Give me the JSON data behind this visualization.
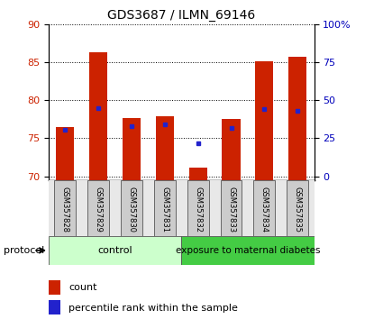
{
  "title": "GDS3687 / ILMN_69146",
  "samples": [
    "GSM357828",
    "GSM357829",
    "GSM357830",
    "GSM357831",
    "GSM357832",
    "GSM357833",
    "GSM357834",
    "GSM357835"
  ],
  "count_values": [
    76.5,
    86.3,
    77.6,
    77.9,
    71.2,
    77.5,
    85.1,
    85.7
  ],
  "percentile_values": [
    76.1,
    79.0,
    76.6,
    76.8,
    74.3,
    76.3,
    78.8,
    78.6
  ],
  "ylim_left": [
    69.5,
    90
  ],
  "yticks_left": [
    70,
    75,
    80,
    85,
    90
  ],
  "ytick_labels_right": [
    "0",
    "25",
    "50",
    "75",
    "100%"
  ],
  "right_ticks_positions": [
    70,
    75,
    80,
    85,
    90
  ],
  "bar_color": "#cc2200",
  "percentile_color": "#2222cc",
  "bar_width": 0.55,
  "control_label": "control",
  "exposure_label": "exposure to maternal diabetes",
  "control_color": "#ccffcc",
  "exposure_color": "#44cc44",
  "protocol_label": "protocol",
  "legend_count_label": "count",
  "legend_perc_label": "percentile rank within the sample",
  "legend_count_color": "#cc2200",
  "legend_perc_color": "#2222cc",
  "grid_color": "#000000",
  "tick_label_color_left": "#cc2200",
  "tick_label_color_right": "#0000bb",
  "background_label": "#cccccc"
}
